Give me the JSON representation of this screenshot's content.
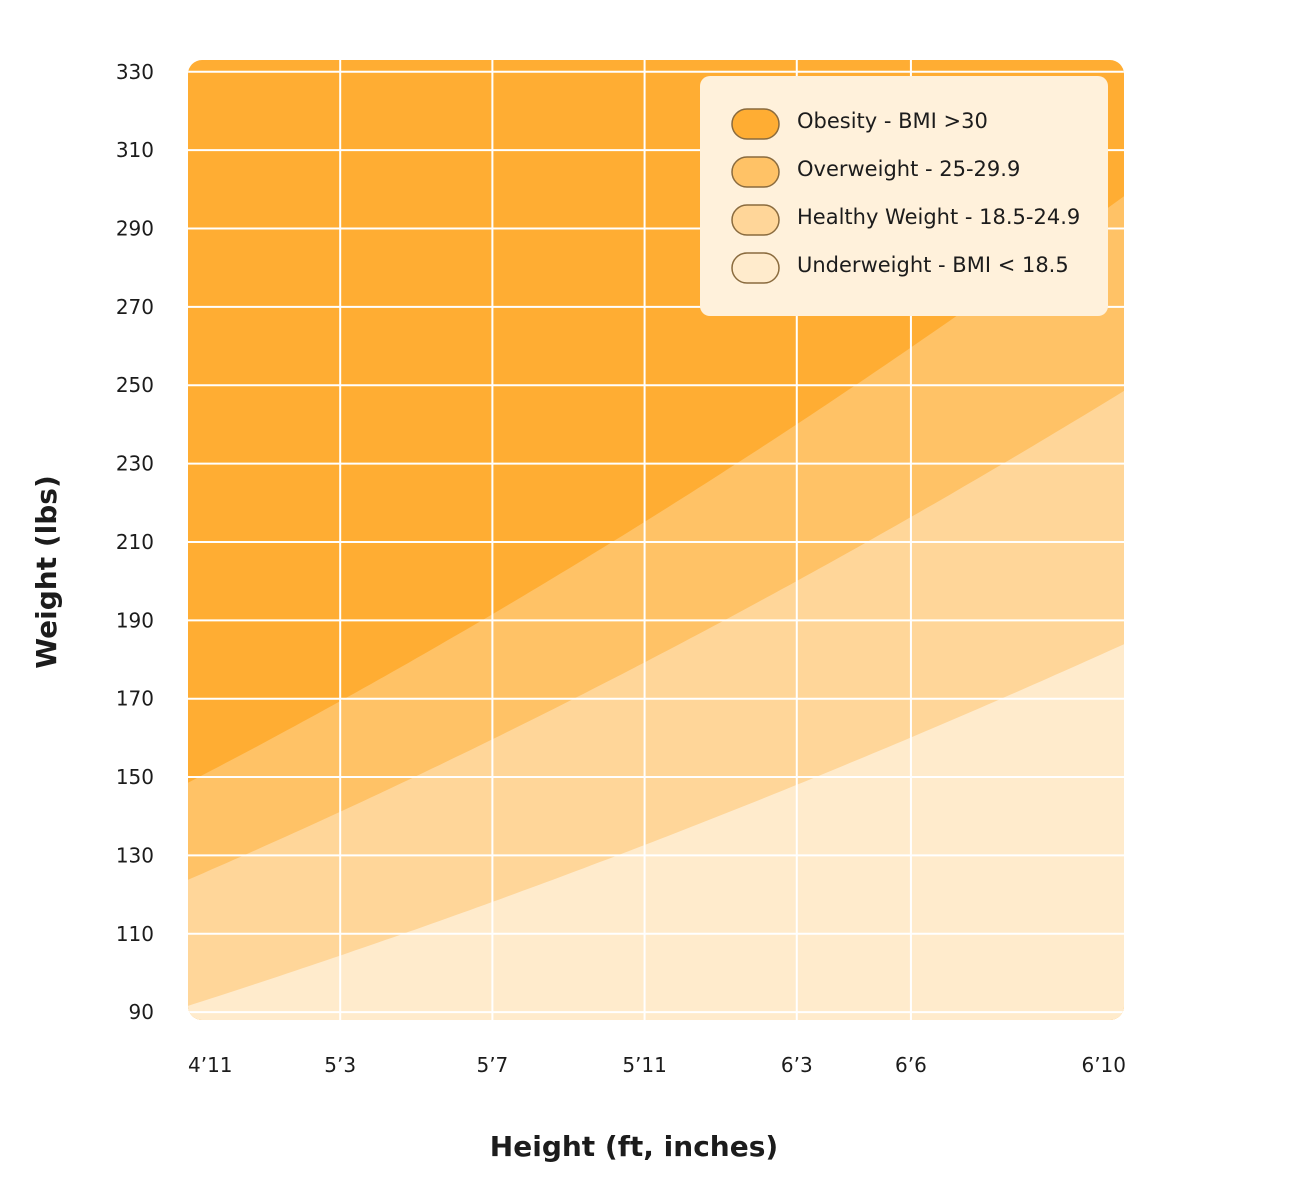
{
  "chart_data": {
    "type": "area",
    "xlabel": "Height (ft, inches)",
    "ylabel": "Weight (lbs)",
    "x_ticks": [
      "4’11",
      "5’3",
      "5’7",
      "5’11",
      "6’3",
      "6’6",
      "6’10"
    ],
    "x_tick_inches": [
      59,
      63,
      67,
      71,
      75,
      78,
      82
    ],
    "xlim_inches": [
      59,
      83.6
    ],
    "y_ticks": [
      330,
      310,
      290,
      270,
      250,
      230,
      210,
      190,
      170,
      150,
      130,
      110,
      90
    ],
    "ylim": [
      88,
      333
    ],
    "grid": true,
    "legend_position": "top-right",
    "bmi_thresholds": [
      18.5,
      25,
      30
    ],
    "series": [
      {
        "name": "Obesity - BMI >30",
        "color": "#FFAD33"
      },
      {
        "name": "Overweight - 25-29.9",
        "color": "#FFC266"
      },
      {
        "name": "Healthy Weight - 18.5-24.9",
        "color": "#FFD699"
      },
      {
        "name": "Underweight - BMI < 18.5",
        "color": "#FFEBCC"
      }
    ]
  },
  "legend": {
    "background": "#FFF1DB",
    "border_color": "#8A6B3E"
  }
}
